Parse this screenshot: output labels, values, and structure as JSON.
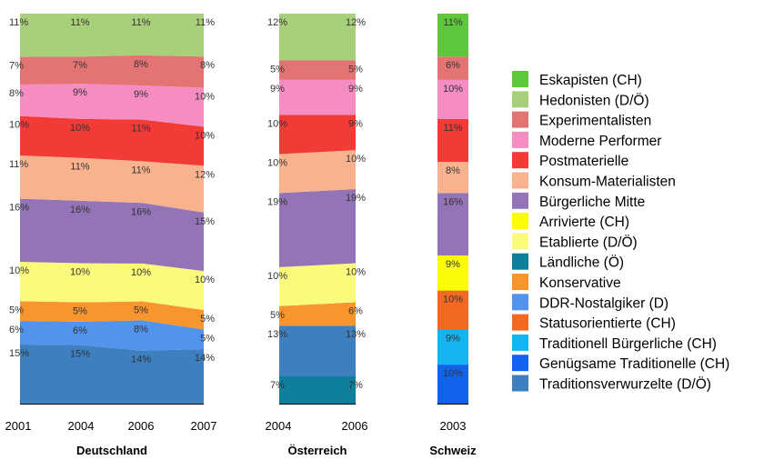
{
  "chart_data": {
    "type": "area",
    "y_scale": "percent, stacked to 100",
    "colors": {
      "Eskapisten (CH)": "#5dc83c",
      "Hedonisten (D/Ö)": "#a8cf79",
      "Experimentalisten": "#e47474",
      "Moderne Performer": "#f58cc2",
      "Postmaterielle": "#f23a37",
      "Konsum-Materialisten": "#f8b28d",
      "Bürgerliche Mitte": "#9374b6",
      "Arrivierte (CH)": "#fbfb0a",
      "Etablierte (D/Ö)": "#fafa7c",
      "Ländliche (Ö)": "#0d7f9d",
      "Konservative": "#f9952d",
      "DDR-Nostalgiker (D)": "#5293eb",
      "Statusorientierte (CH)": "#f36921",
      "Traditionell Bürgerliche (CH)": "#13b5f0",
      "Genügsame Traditionelle (CH)": "#1163ec",
      "Traditionsverwurzelte (D/Ö)": "#3d7fbf"
    },
    "legend": [
      "Eskapisten (CH)",
      "Hedonisten (D/Ö)",
      "Experimentalisten",
      "Moderne Performer",
      "Postmaterielle",
      "Konsum-Materialisten",
      "Bürgerliche Mitte",
      "Arrivierte (CH)",
      "Etablierte (D/Ö)",
      "Ländliche (Ö)",
      "Konservative",
      "DDR-Nostalgiker (D)",
      "Statusorientierte (CH)",
      "Traditionell Bürgerliche (CH)",
      "Genügsame Traditionelle (CH)",
      "Traditionsverwurzelte (D/Ö)"
    ],
    "legend_position": "right",
    "panels": [
      {
        "title": "Deutschland",
        "kind": "area",
        "x": [
          "2001",
          "2004",
          "2006",
          "2007"
        ],
        "series": [
          {
            "name": "Traditionsverwurzelte (D/Ö)",
            "values": [
              15,
              15,
              14,
              14
            ],
            "labels": [
              "15%",
              "15%",
              "14%",
              "14%"
            ]
          },
          {
            "name": "DDR-Nostalgiker (D)",
            "values": [
              6,
              6,
              8,
              5
            ],
            "labels": [
              "6%",
              "6%",
              "8%",
              "5%"
            ]
          },
          {
            "name": "Konservative",
            "values": [
              5,
              5,
              5,
              5
            ],
            "labels": [
              "5%",
              "5%",
              "5%",
              "5%"
            ]
          },
          {
            "name": "Etablierte (D/Ö)",
            "values": [
              10,
              10,
              10,
              10
            ],
            "labels": [
              "10%",
              "10%",
              "10%",
              "10%"
            ]
          },
          {
            "name": "Bürgerliche Mitte",
            "values": [
              16,
              16,
              16,
              15
            ],
            "labels": [
              "16%",
              "16%",
              "16%",
              "15%"
            ]
          },
          {
            "name": "Konsum-Materialisten",
            "values": [
              11,
              11,
              11,
              12
            ],
            "labels": [
              "11%",
              "11%",
              "11%",
              "12%"
            ]
          },
          {
            "name": "Postmaterielle",
            "values": [
              10,
              10,
              11,
              10
            ],
            "labels": [
              "10%",
              "10%",
              "11%",
              "10%"
            ]
          },
          {
            "name": "Moderne Performer",
            "values": [
              8,
              9,
              9,
              10
            ],
            "labels": [
              "8%",
              "9%",
              "9%",
              "10%"
            ]
          },
          {
            "name": "Experimentalisten",
            "values": [
              7,
              7,
              8,
              8
            ],
            "labels": [
              "7%",
              "7%",
              "8%",
              "8%"
            ]
          },
          {
            "name": "Hedonisten (D/Ö)",
            "values": [
              11,
              11,
              11,
              11
            ],
            "labels": [
              "11%",
              "11%",
              "11%",
              "11%"
            ]
          }
        ]
      },
      {
        "title": "Österreich",
        "kind": "area",
        "x": [
          "2004",
          "2006"
        ],
        "series": [
          {
            "name": "Ländliche (Ö)",
            "values": [
              7,
              7
            ],
            "labels": [
              "7%",
              "7%"
            ]
          },
          {
            "name": "Traditionsverwurzelte (D/Ö)",
            "values": [
              13,
              13
            ],
            "labels": [
              "13%",
              "13%"
            ]
          },
          {
            "name": "Konservative",
            "values": [
              5,
              6
            ],
            "labels": [
              "5%",
              "6%"
            ]
          },
          {
            "name": "Etablierte (D/Ö)",
            "values": [
              10,
              10
            ],
            "labels": [
              "10%",
              "10%"
            ]
          },
          {
            "name": "Bürgerliche Mitte",
            "values": [
              19,
              19
            ],
            "labels": [
              "19%",
              "19%"
            ]
          },
          {
            "name": "Konsum-Materialisten",
            "values": [
              10,
              10
            ],
            "labels": [
              "10%",
              "10%"
            ]
          },
          {
            "name": "Postmaterielle",
            "values": [
              10,
              9
            ],
            "labels": [
              "10%",
              "9%"
            ]
          },
          {
            "name": "Moderne Performer",
            "values": [
              9,
              9
            ],
            "labels": [
              "9%",
              "9%"
            ]
          },
          {
            "name": "Experimentalisten",
            "values": [
              5,
              5
            ],
            "labels": [
              "5%",
              "5%"
            ]
          },
          {
            "name": "Hedonisten (D/Ö)",
            "values": [
              12,
              12
            ],
            "labels": [
              "12%",
              "12%"
            ]
          }
        ]
      },
      {
        "title": "Schweiz",
        "kind": "bar",
        "x": [
          "2003"
        ],
        "series": [
          {
            "name": "Genügsame Traditionelle (CH)",
            "values": [
              10
            ],
            "labels": [
              "10%"
            ]
          },
          {
            "name": "Traditionell Bürgerliche (CH)",
            "values": [
              9
            ],
            "labels": [
              "9%"
            ]
          },
          {
            "name": "Statusorientierte (CH)",
            "values": [
              10
            ],
            "labels": [
              "10%"
            ]
          },
          {
            "name": "Arrivierte (CH)",
            "values": [
              9
            ],
            "labels": [
              "9%"
            ]
          },
          {
            "name": "Bürgerliche Mitte",
            "values": [
              16
            ],
            "labels": [
              "16%"
            ]
          },
          {
            "name": "Konsum-Materialisten",
            "values": [
              8
            ],
            "labels": [
              "8%"
            ]
          },
          {
            "name": "Postmaterielle",
            "values": [
              11
            ],
            "labels": [
              "11%"
            ]
          },
          {
            "name": "Moderne Performer",
            "values": [
              10
            ],
            "labels": [
              "10%"
            ]
          },
          {
            "name": "Experimentalisten",
            "values": [
              6
            ],
            "labels": [
              "6%"
            ]
          },
          {
            "name": "Eskapisten (CH)",
            "values": [
              11
            ],
            "labels": [
              "11%"
            ]
          }
        ]
      }
    ]
  }
}
